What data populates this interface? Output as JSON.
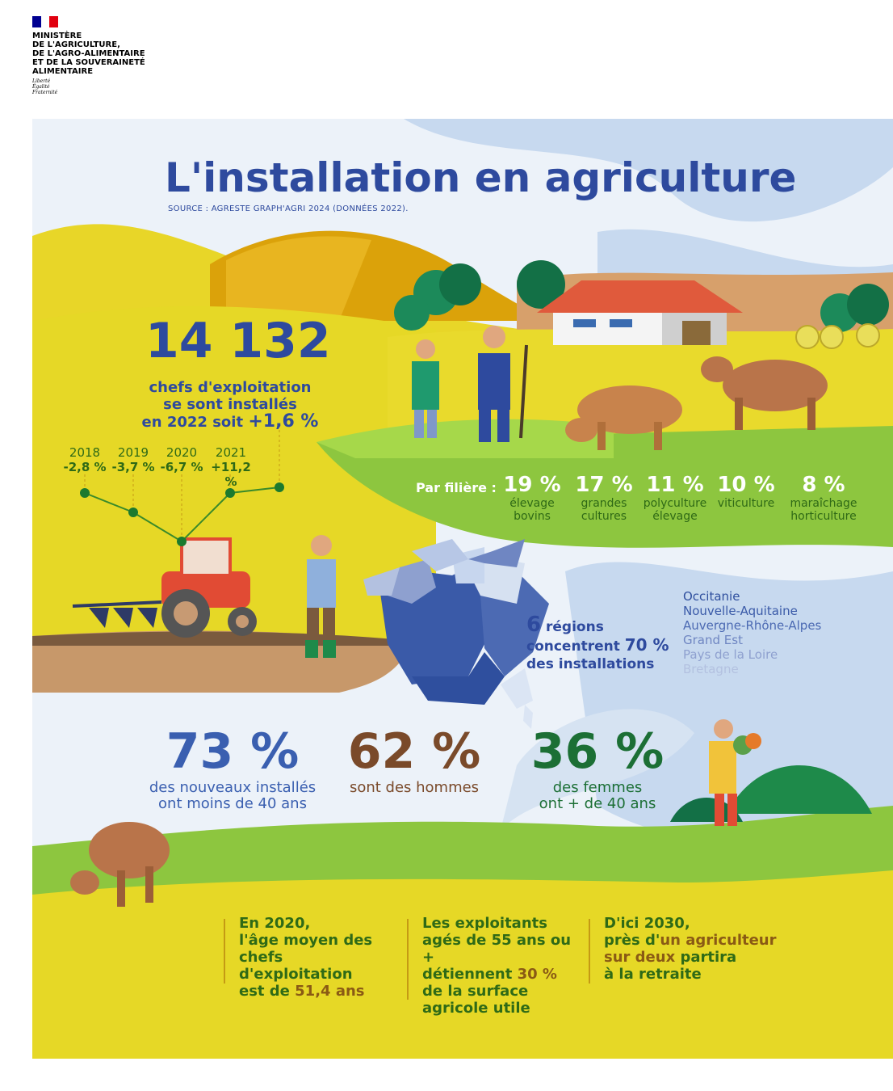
{
  "ministry": {
    "name_lines": [
      "MINISTÈRE",
      "DE L'AGRICULTURE,",
      "DE L'AGRO-ALIMENTAIRE",
      "ET DE LA SOUVERAINETÉ",
      "ALIMENTAIRE"
    ],
    "motto_lines": [
      "Liberté",
      "Égalité",
      "Fraternité"
    ]
  },
  "header": {
    "title": "L'installation en agriculture",
    "source": "SOURCE : AGRESTE GRAPH'AGRI 2024 (DONNÉES 2022)."
  },
  "headline": {
    "number": "14 132",
    "text_lines": [
      "chefs d'exploitation",
      "se sont installés",
      "en 2022 soit"
    ],
    "change": "+1,6 %"
  },
  "trend": [
    {
      "year": "2018",
      "value": "-2,8 %"
    },
    {
      "year": "2019",
      "value": "-3,7 %"
    },
    {
      "year": "2020",
      "value": "-6,7 %"
    },
    {
      "year": "2021",
      "value": "+11,2 %"
    }
  ],
  "filieres": {
    "label": "Par filière :",
    "items": [
      {
        "pct": "19 %",
        "lines": [
          "élevage",
          "bovins"
        ]
      },
      {
        "pct": "17 %",
        "lines": [
          "grandes",
          "cultures"
        ]
      },
      {
        "pct": "11 %",
        "lines": [
          "polyculture",
          "élevage"
        ]
      },
      {
        "pct": "10 %",
        "lines": [
          "viticulture"
        ]
      },
      {
        "pct": "8 %",
        "lines": [
          "maraîchage",
          "horticulture"
        ]
      }
    ]
  },
  "regions": {
    "count": "6",
    "line1": "régions",
    "line2": "concentrent",
    "pct": "70 %",
    "line3": "des installations",
    "list": [
      {
        "name": "Occitanie",
        "color": "#2f4f9e"
      },
      {
        "name": "Nouvelle-Aquitaine",
        "color": "#3a5aa8"
      },
      {
        "name": "Auvergne-Rhône-Alpes",
        "color": "#4c6ab3"
      },
      {
        "name": "Grand Est",
        "color": "#6f86c2"
      },
      {
        "name": "Pays de la Loire",
        "color": "#8ea0cf"
      },
      {
        "name": "Bretagne",
        "color": "#b3c1e0"
      }
    ]
  },
  "stats": [
    {
      "value": "73 %",
      "lines": [
        "des nouveaux installés",
        "ont moins de 40 ans"
      ],
      "color": "#3a5fb0"
    },
    {
      "value": "62 %",
      "lines": [
        "sont des hommes"
      ],
      "color": "#7a4a2a"
    },
    {
      "value": "36 %",
      "lines": [
        "des femmes",
        "ont + de 40 ans"
      ],
      "color": "#1c6f35"
    }
  ],
  "facts": {
    "f1": {
      "lines": [
        "En 2020,",
        "l'âge moyen des",
        "chefs d'exploitation"
      ],
      "pre": "est de ",
      "hl": "51,4 ans"
    },
    "f2": {
      "lines": [
        "Les exploitants",
        "agés de 55 ans ou +"
      ],
      "pre": "détiennent ",
      "hl": "30 %",
      "post_lines": [
        "de la surface",
        "agricole utile"
      ]
    },
    "f3": {
      "line1": "D'ici 2030,",
      "pre": "près d'",
      "hl1": "un agriculteur",
      "hl2": "sur deux",
      "post": " partira",
      "line4": "à la retraite"
    }
  }
}
